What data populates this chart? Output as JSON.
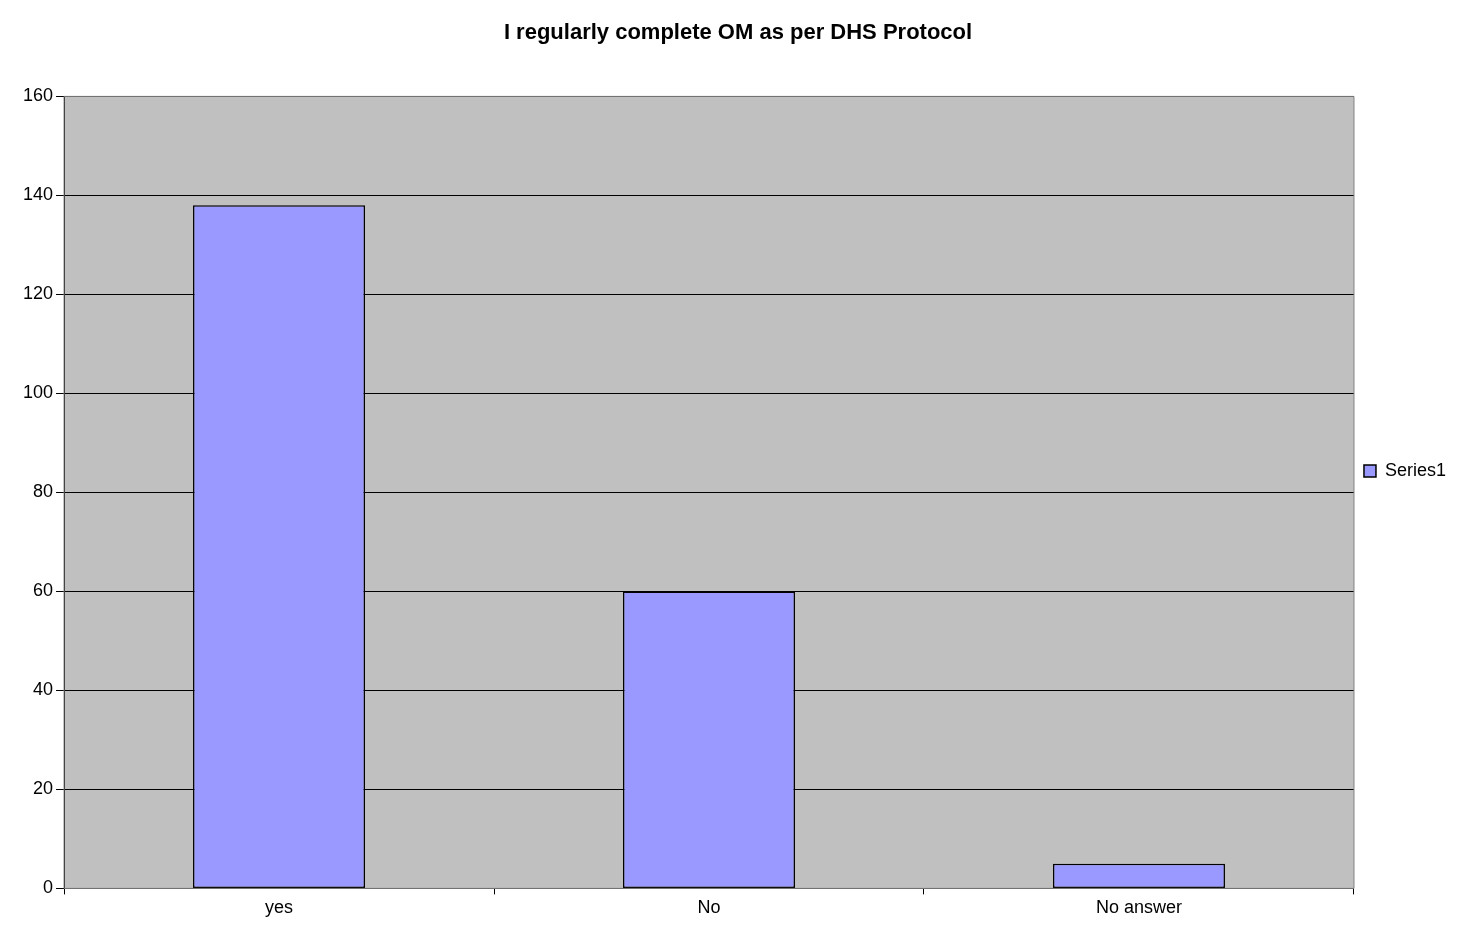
{
  "chart_data": {
    "type": "bar",
    "title": "I regularly complete OM as per DHS Protocol",
    "categories": [
      "yes",
      "No",
      "No answer"
    ],
    "series": [
      {
        "name": "Series1",
        "color": "#9999ff",
        "values": [
          138,
          60,
          5
        ]
      }
    ],
    "ylim": [
      0,
      160
    ],
    "yticks": [
      0,
      20,
      40,
      60,
      80,
      100,
      120,
      140,
      160
    ],
    "grid": "y",
    "legend": "right"
  }
}
